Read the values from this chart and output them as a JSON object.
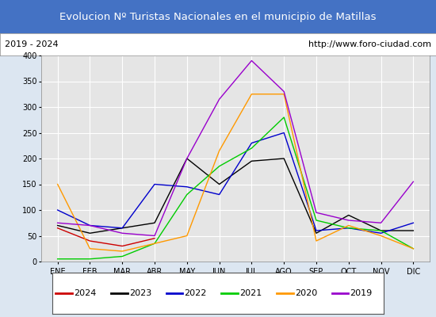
{
  "title": "Evolucion Nº Turistas Nacionales en el municipio de Matillas",
  "subtitle_left": "2019 - 2024",
  "subtitle_right": "http://www.foro-ciudad.com",
  "x_labels": [
    "ENE",
    "FEB",
    "MAR",
    "ABR",
    "MAY",
    "JUN",
    "JUL",
    "AGO",
    "SEP",
    "OCT",
    "NOV",
    "DIC"
  ],
  "ylim": [
    0,
    400
  ],
  "yticks": [
    0,
    50,
    100,
    150,
    200,
    250,
    300,
    350,
    400
  ],
  "series": {
    "2024": {
      "color": "#cc0000",
      "values": [
        65,
        40,
        30,
        45,
        null,
        null,
        null,
        null,
        null,
        null,
        null,
        null
      ]
    },
    "2023": {
      "color": "#000000",
      "values": [
        70,
        55,
        65,
        75,
        200,
        150,
        195,
        200,
        55,
        90,
        60,
        60
      ]
    },
    "2022": {
      "color": "#0000cc",
      "values": [
        100,
        70,
        65,
        150,
        145,
        130,
        230,
        250,
        60,
        65,
        55,
        75
      ]
    },
    "2021": {
      "color": "#00cc00",
      "values": [
        5,
        5,
        10,
        35,
        130,
        185,
        220,
        280,
        80,
        65,
        60,
        25
      ]
    },
    "2020": {
      "color": "#ff9900",
      "values": [
        150,
        25,
        20,
        35,
        50,
        215,
        325,
        325,
        40,
        70,
        50,
        25
      ]
    },
    "2019": {
      "color": "#9900cc",
      "values": [
        75,
        70,
        55,
        50,
        200,
        315,
        390,
        330,
        95,
        80,
        75,
        155
      ]
    }
  },
  "title_bg_color": "#4472c4",
  "title_font_color": "#ffffff",
  "plot_bg_color": "#e5e5e5",
  "grid_color": "#ffffff",
  "outer_bg_color": "#dce6f1",
  "legend_order": [
    "2024",
    "2023",
    "2022",
    "2021",
    "2020",
    "2019"
  ],
  "title_fontsize": 9.5,
  "tick_fontsize": 7,
  "legend_fontsize": 8
}
